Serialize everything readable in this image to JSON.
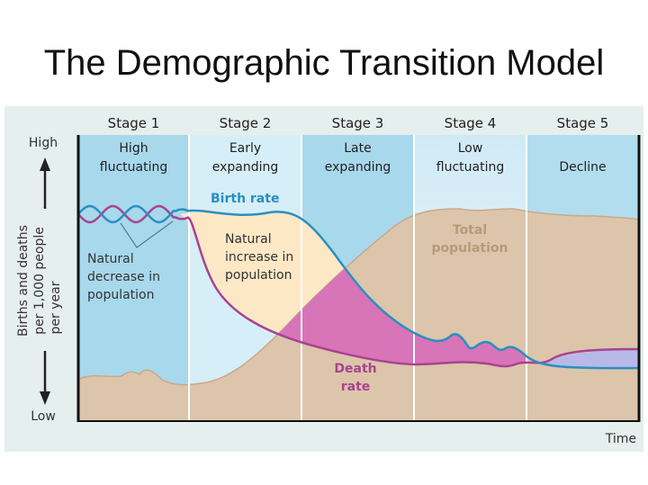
{
  "title": "The Demographic Transition Model",
  "chart_data": {
    "type": "area",
    "title": "The Demographic Transition Model",
    "xlabel": "Time",
    "ylabel": "Births and deaths per 1,000 people per year",
    "y_high_label": "High",
    "y_low_label": "Low",
    "stages": [
      {
        "name": "Stage 1",
        "description": "High fluctuating",
        "line1": "High",
        "line2": "fluctuating"
      },
      {
        "name": "Stage 2",
        "description": "Early expanding",
        "line1": "Early",
        "line2": "expanding"
      },
      {
        "name": "Stage 3",
        "description": "Late expanding",
        "line1": "Late",
        "line2": "expanding"
      },
      {
        "name": "Stage 4",
        "description": "Low fluctuating",
        "line1": "Low",
        "line2": "fluctuating"
      },
      {
        "name": "Stage 5",
        "description": "Decline",
        "line1": "",
        "line2": "Decline"
      }
    ],
    "series": [
      {
        "name": "Birth rate",
        "color": "#2a8fc0"
      },
      {
        "name": "Death rate",
        "color": "#a8438f"
      },
      {
        "name": "Total population",
        "color": "#dcc5ab"
      }
    ],
    "annotations": {
      "natural_decrease": [
        "Natural",
        "decrease in",
        "population"
      ],
      "natural_increase": [
        "Natural",
        "increase in",
        "population"
      ],
      "death_rate": [
        "Death",
        "rate"
      ],
      "total_population": [
        "Total",
        "population"
      ],
      "birth_rate": "Birth rate"
    },
    "colors": {
      "natural_increase_fill": "#fde8c6",
      "overlap_fill": "#d874b8",
      "decline_fill": "#b8b9e8",
      "stage_dark": "#a8d8ec",
      "stage_light": "#d6eef7",
      "panel": "#e5efed"
    }
  }
}
